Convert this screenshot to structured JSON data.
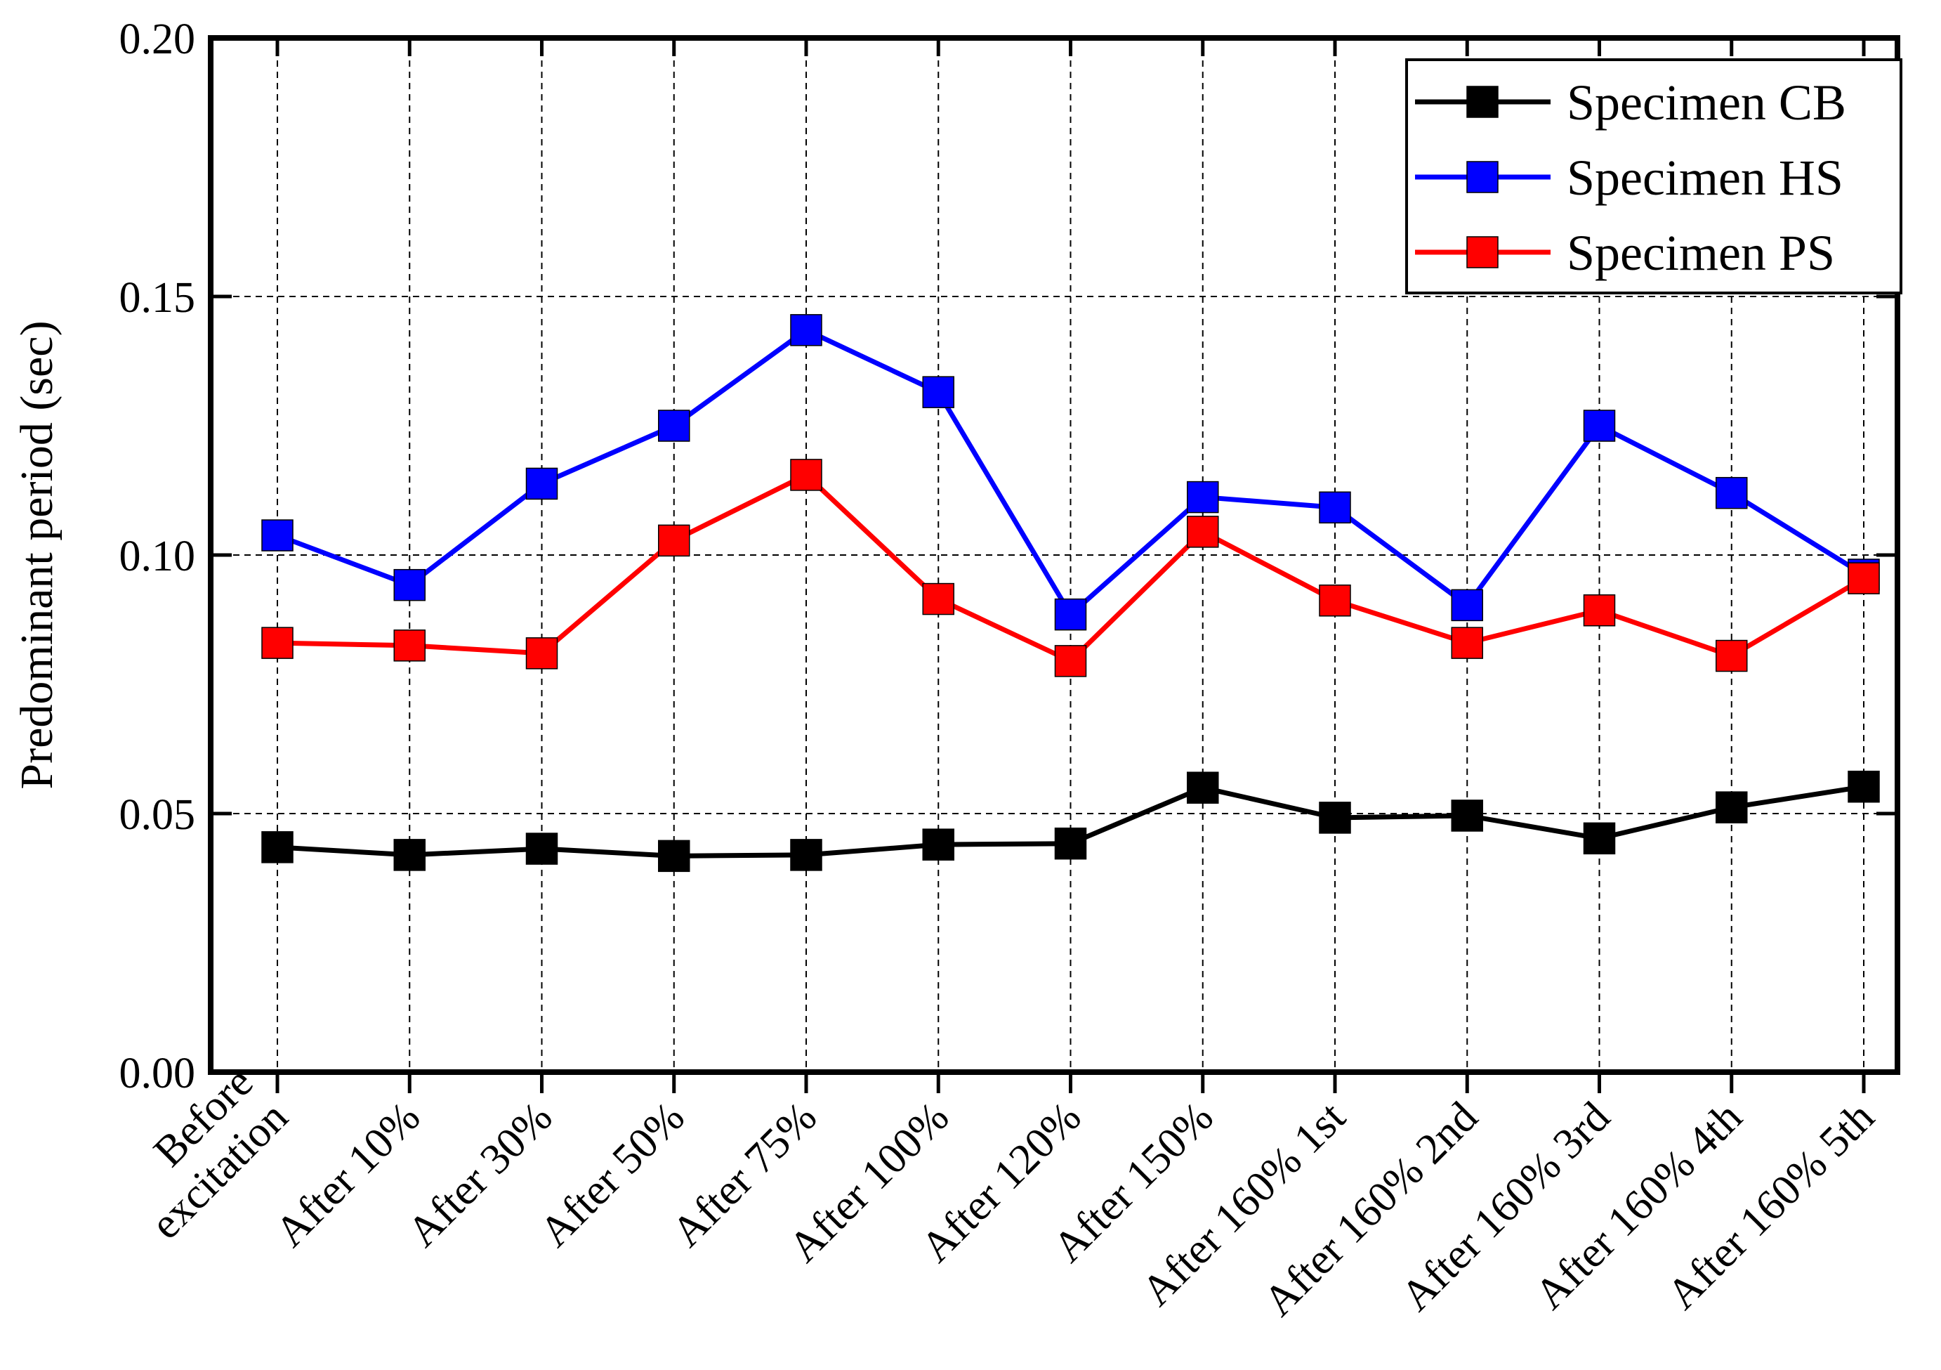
{
  "chart_data": {
    "type": "line",
    "ylabel": "Predominant period (sec)",
    "ylim": [
      0,
      0.2
    ],
    "yticks": [
      "0.00",
      "0.05",
      "0.10",
      "0.15",
      "0.20"
    ],
    "grid": true,
    "legend_position": "top-right",
    "categories": [
      [
        "Before",
        "excitation"
      ],
      [
        "After 10%"
      ],
      [
        "After 30%"
      ],
      [
        "After 50%"
      ],
      [
        "After 75%"
      ],
      [
        "After 100%"
      ],
      [
        "After 120%"
      ],
      [
        "After 150%"
      ],
      [
        "After 160% 1st"
      ],
      [
        "After 160% 2nd"
      ],
      [
        "After 160% 3rd"
      ],
      [
        "After 160% 4th"
      ],
      [
        "After 160% 5th"
      ]
    ],
    "series": [
      {
        "name": "Specimen CB",
        "color": "#000000",
        "values": [
          0.0435,
          0.042,
          0.0432,
          0.0418,
          0.042,
          0.044,
          0.0442,
          0.055,
          0.0492,
          0.0496,
          0.0452,
          0.0512,
          0.0552
        ]
      },
      {
        "name": "Specimen HS",
        "color": "#0000ff",
        "values": [
          0.1038,
          0.0942,
          0.1138,
          0.125,
          0.1435,
          0.1315,
          0.0885,
          0.1112,
          0.1092,
          0.0903,
          0.125,
          0.112,
          0.0962
        ]
      },
      {
        "name": "Specimen PS",
        "color": "#ff0000",
        "values": [
          0.083,
          0.0825,
          0.081,
          0.1028,
          0.1155,
          0.0915,
          0.0795,
          0.1045,
          0.0912,
          0.083,
          0.0893,
          0.0805,
          0.0955
        ]
      }
    ]
  }
}
